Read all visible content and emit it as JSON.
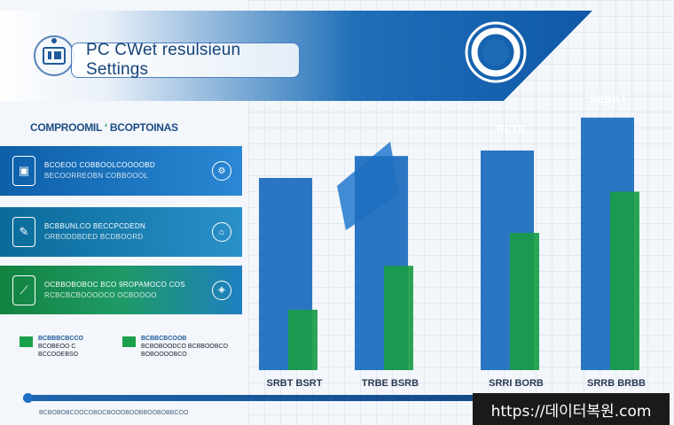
{
  "header": {
    "title": "PC CWet resulsieun Settings"
  },
  "left": {
    "section_label_a": "COMPROOMIL",
    "section_label_b": "BCOPTOINAS",
    "panels": [
      {
        "title": "BCOEOO COBBOOLCOOOOBD",
        "sub": "BECOORREOBN COBBOOOL",
        "end_icon": "cog-icon"
      },
      {
        "title": "BCBBUNLCO BECCPCDEDN",
        "sub": "ORBODDBDED BCDBOORD",
        "end_icon": "home-icon"
      },
      {
        "title": "OCBBOBOBOC BCO 9ROPAMOCO COS",
        "sub": "RCBCBCBOOOOCO OCBOOOO",
        "end_icon": "shield-icon"
      }
    ],
    "legend": [
      {
        "t1": "BCBBBCBCCO",
        "t2": "BCOBEOO C",
        "t3": "BCCOOEBSO"
      },
      {
        "t1": "BCBBCBCOOB",
        "t2": "BCBOBOODCO BCBBOOBCO",
        "t3": "BOBOOOOBCO"
      }
    ]
  },
  "chart_data": {
    "type": "bar",
    "categories": [
      "SRBT BSRT",
      "TRBE BSRB",
      "SRRI BORB",
      "SRRB BRBB"
    ],
    "annotations": [
      "RETS",
      "SEBB I"
    ],
    "series": [
      {
        "values": [
          70,
          78,
          80,
          92
        ],
        "color": "#1f6fc0"
      },
      {
        "values": [
          22,
          38,
          50,
          65
        ],
        "color": "#1a9c46"
      }
    ]
  },
  "footer": {
    "text": "BCBOBOBCOOCOBOCBOOOBOOBBOOBOBBCOO",
    "watermark": "https://데이터복원.com"
  },
  "colors": {
    "primary_blue": "#1f6fc0",
    "accent_green": "#1a9c46"
  }
}
